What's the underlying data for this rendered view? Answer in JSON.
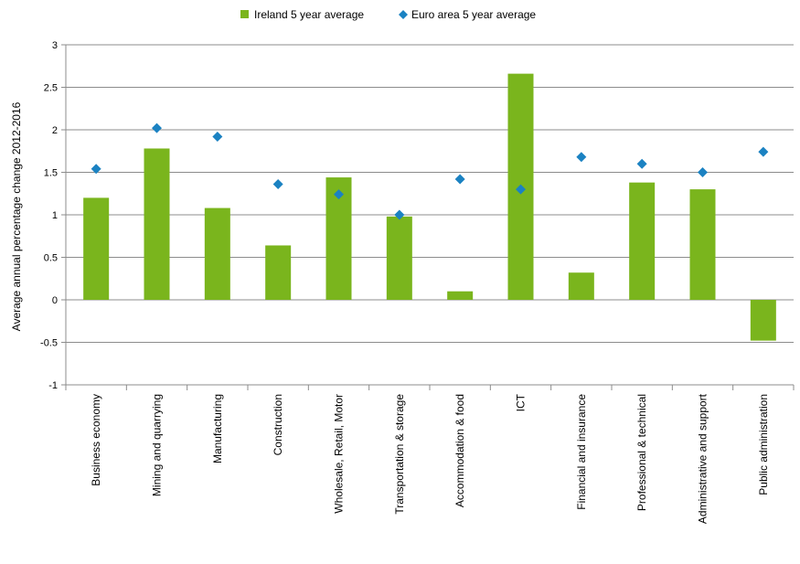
{
  "chart_data": {
    "type": "bar",
    "title": "",
    "xlabel": "",
    "ylabel": "Average annual percentage change 2012-2016",
    "ylim": [
      -1,
      3
    ],
    "yticks": [
      -1,
      -0.5,
      0,
      0.5,
      1,
      1.5,
      2,
      2.5,
      3
    ],
    "grid": true,
    "legend": "top-center",
    "categories": [
      "Business economy",
      "Mining and quarrying",
      "Manufacturing",
      "Construction",
      "Wholesale, Retail, Motor",
      "Transportation & storage",
      "Accommodation & food",
      "ICT",
      "Financial and insurance",
      "Professional & technical",
      "Administrative and support",
      "Public administration"
    ],
    "series": [
      {
        "name": "Ireland 5 year average",
        "kind": "bar",
        "color": "#7ab51d",
        "values": [
          1.2,
          1.78,
          1.08,
          0.64,
          1.44,
          0.98,
          0.1,
          2.66,
          0.32,
          1.38,
          1.3,
          -0.48
        ]
      },
      {
        "name": "Euro area 5 year average",
        "kind": "marker",
        "marker": "diamond",
        "color": "#1b82c2",
        "values": [
          1.54,
          2.02,
          1.92,
          1.36,
          1.24,
          1.0,
          1.42,
          1.3,
          1.68,
          1.6,
          1.5,
          1.74
        ]
      }
    ]
  }
}
